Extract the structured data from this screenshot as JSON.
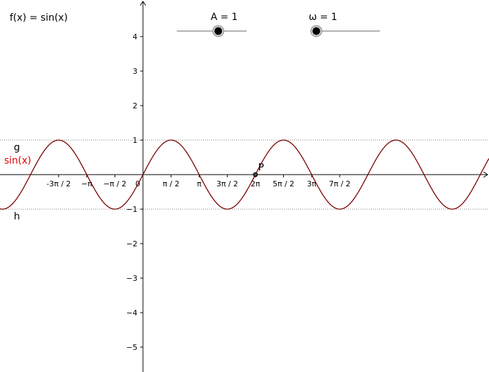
{
  "function_label": "f(x) = sin(x)",
  "sliders": [
    {
      "name": "amplitude",
      "label": "A = 1"
    },
    {
      "name": "omega",
      "label": "ω = 1"
    }
  ],
  "labels": {
    "g": "g",
    "h": "h",
    "sin": "sin(x)",
    "point": "P"
  },
  "colors": {
    "curve": "#7a0000",
    "red_label": "#e00000",
    "axis": "#000000"
  },
  "chart_data": {
    "type": "line",
    "series": [
      {
        "name": "sin(x)",
        "expression": "sin(x)"
      }
    ],
    "xlim": [
      -4.712,
      15.95
    ],
    "ylim": [
      -5.7,
      5.0
    ],
    "x_ticks": [
      {
        "value": -4.712389,
        "label": "-3π / 2"
      },
      {
        "value": -3.141593,
        "label": "−π"
      },
      {
        "value": -1.570796,
        "label": "−π / 2"
      },
      {
        "value": 0,
        "label": "0"
      },
      {
        "value": 1.570796,
        "label": "π / 2"
      },
      {
        "value": 3.141593,
        "label": "π"
      },
      {
        "value": 4.712389,
        "label": "3π / 2"
      },
      {
        "value": 6.283185,
        "label": "2π"
      },
      {
        "value": 7.853982,
        "label": "5π / 2"
      },
      {
        "value": 9.424778,
        "label": "3π"
      },
      {
        "value": 10.995574,
        "label": "7π / 2"
      }
    ],
    "y_ticks": [
      {
        "value": 4,
        "label": "4"
      },
      {
        "value": 3,
        "label": "3"
      },
      {
        "value": 2,
        "label": "2"
      },
      {
        "value": 1,
        "label": "1"
      },
      {
        "value": -1,
        "label": "−1"
      },
      {
        "value": -2,
        "label": "−2"
      },
      {
        "value": -3,
        "label": "−3"
      },
      {
        "value": -4,
        "label": "−4"
      },
      {
        "value": -5,
        "label": "−5"
      }
    ],
    "horizontal_lines": [
      {
        "name": "g",
        "y": 1
      },
      {
        "name": "h",
        "y": -1
      }
    ],
    "point": {
      "name": "P",
      "x": 6.283185,
      "y": 0
    }
  }
}
